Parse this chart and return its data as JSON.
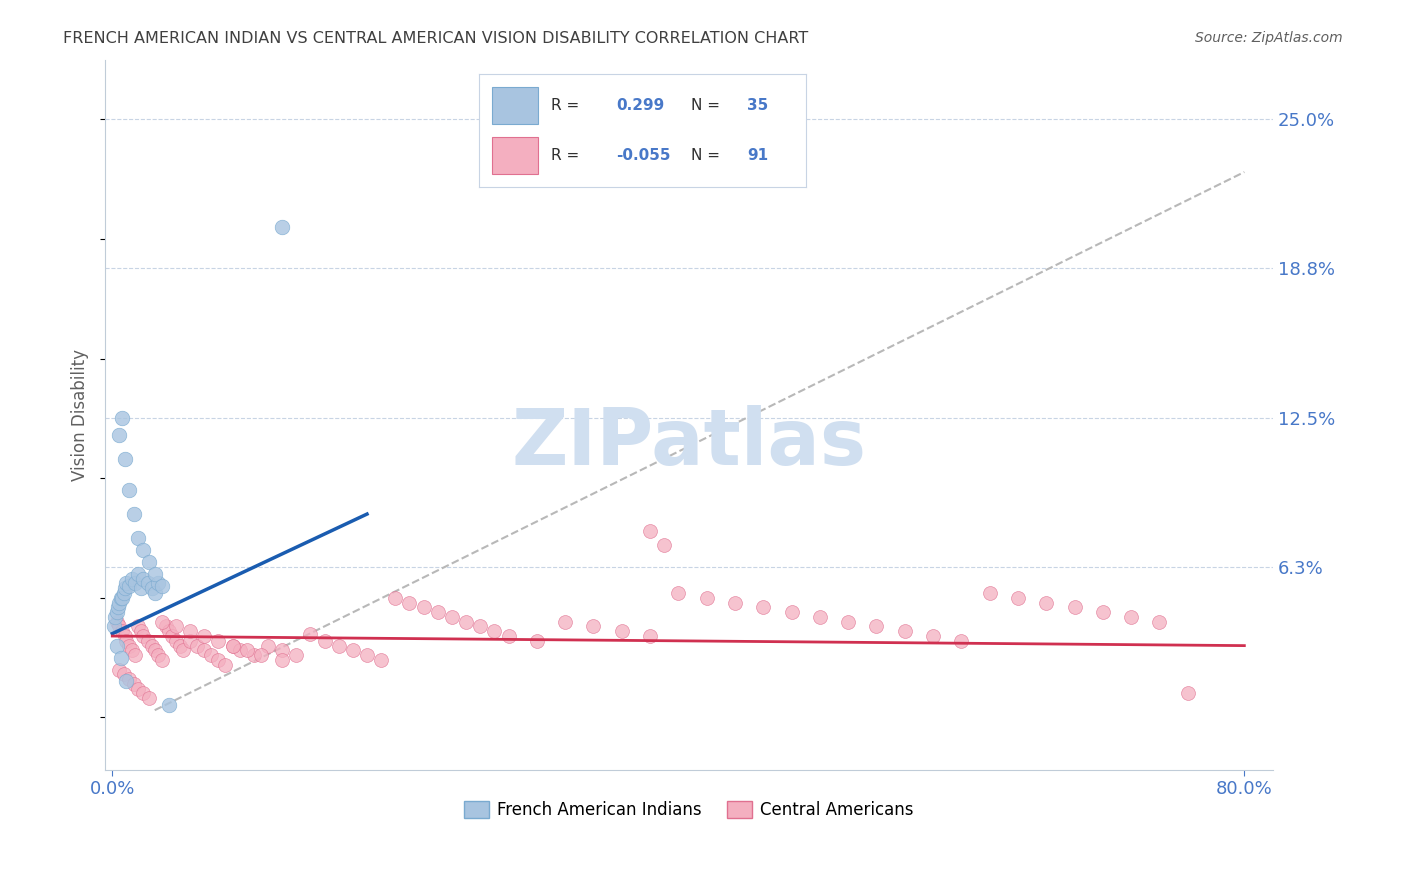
{
  "title": "FRENCH AMERICAN INDIAN VS CENTRAL AMERICAN VISION DISABILITY CORRELATION CHART",
  "source": "Source: ZipAtlas.com",
  "ylabel": "Vision Disability",
  "legend1_label": "R =  0.299   N = 35",
  "legend2_label": "R = -0.055   N = 91",
  "legend_label1": "French American Indians",
  "legend_label2": "Central Americans",
  "blue_color": "#a8c4e0",
  "blue_edge_color": "#7aaad0",
  "blue_line_color": "#1a5cb0",
  "pink_color": "#f4afc0",
  "pink_edge_color": "#e07090",
  "pink_line_color": "#d03050",
  "dashed_line_color": "#b8b8b8",
  "grid_color": "#c8d4e4",
  "title_color": "#404040",
  "axis_tick_color": "#4878c8",
  "ylabel_color": "#606060",
  "watermark_color": "#d0dff0",
  "source_color": "#606060",
  "xlim": [
    -0.005,
    0.82
  ],
  "ylim": [
    -0.022,
    0.275
  ],
  "xticks": [
    0.0,
    0.8
  ],
  "xtick_labels": [
    "0.0%",
    "80.0%"
  ],
  "yticks": [
    0.063,
    0.125,
    0.188,
    0.25
  ],
  "ytick_labels": [
    "6.3%",
    "12.5%",
    "18.8%",
    "25.0%"
  ],
  "grid_yticks": [
    0.063,
    0.125,
    0.188,
    0.25
  ],
  "blue_x": [
    0.001,
    0.002,
    0.003,
    0.004,
    0.005,
    0.006,
    0.007,
    0.008,
    0.009,
    0.01,
    0.012,
    0.014,
    0.016,
    0.018,
    0.02,
    0.022,
    0.025,
    0.028,
    0.03,
    0.032,
    0.005,
    0.007,
    0.009,
    0.012,
    0.015,
    0.018,
    0.022,
    0.026,
    0.03,
    0.035,
    0.003,
    0.006,
    0.01,
    0.12,
    0.04
  ],
  "blue_y": [
    0.038,
    0.042,
    0.044,
    0.046,
    0.048,
    0.05,
    0.05,
    0.052,
    0.054,
    0.056,
    0.055,
    0.058,
    0.056,
    0.06,
    0.054,
    0.058,
    0.056,
    0.054,
    0.052,
    0.056,
    0.118,
    0.125,
    0.108,
    0.095,
    0.085,
    0.075,
    0.07,
    0.065,
    0.06,
    0.055,
    0.03,
    0.025,
    0.015,
    0.205,
    0.005
  ],
  "pink_x": [
    0.003,
    0.005,
    0.007,
    0.009,
    0.01,
    0.012,
    0.014,
    0.016,
    0.018,
    0.02,
    0.022,
    0.025,
    0.028,
    0.03,
    0.032,
    0.035,
    0.038,
    0.04,
    0.042,
    0.045,
    0.048,
    0.05,
    0.055,
    0.06,
    0.065,
    0.07,
    0.075,
    0.08,
    0.085,
    0.09,
    0.1,
    0.11,
    0.12,
    0.13,
    0.14,
    0.15,
    0.16,
    0.17,
    0.18,
    0.19,
    0.2,
    0.21,
    0.22,
    0.23,
    0.24,
    0.25,
    0.26,
    0.27,
    0.28,
    0.3,
    0.32,
    0.34,
    0.36,
    0.38,
    0.4,
    0.42,
    0.44,
    0.46,
    0.48,
    0.5,
    0.52,
    0.54,
    0.56,
    0.58,
    0.6,
    0.62,
    0.64,
    0.66,
    0.68,
    0.7,
    0.72,
    0.74,
    0.76,
    0.005,
    0.008,
    0.012,
    0.015,
    0.018,
    0.022,
    0.026,
    0.035,
    0.045,
    0.055,
    0.065,
    0.075,
    0.085,
    0.095,
    0.105,
    0.12,
    0.38,
    0.39
  ],
  "pink_y": [
    0.04,
    0.038,
    0.036,
    0.034,
    0.032,
    0.03,
    0.028,
    0.026,
    0.038,
    0.036,
    0.034,
    0.032,
    0.03,
    0.028,
    0.026,
    0.024,
    0.038,
    0.036,
    0.034,
    0.032,
    0.03,
    0.028,
    0.032,
    0.03,
    0.028,
    0.026,
    0.024,
    0.022,
    0.03,
    0.028,
    0.026,
    0.03,
    0.028,
    0.026,
    0.035,
    0.032,
    0.03,
    0.028,
    0.026,
    0.024,
    0.05,
    0.048,
    0.046,
    0.044,
    0.042,
    0.04,
    0.038,
    0.036,
    0.034,
    0.032,
    0.04,
    0.038,
    0.036,
    0.034,
    0.052,
    0.05,
    0.048,
    0.046,
    0.044,
    0.042,
    0.04,
    0.038,
    0.036,
    0.034,
    0.032,
    0.052,
    0.05,
    0.048,
    0.046,
    0.044,
    0.042,
    0.04,
    0.01,
    0.02,
    0.018,
    0.016,
    0.014,
    0.012,
    0.01,
    0.008,
    0.04,
    0.038,
    0.036,
    0.034,
    0.032,
    0.03,
    0.028,
    0.026,
    0.024,
    0.078,
    0.072
  ],
  "blue_line_x": [
    0.0,
    0.18
  ],
  "blue_line_y": [
    0.035,
    0.085
  ],
  "pink_line_x": [
    0.0,
    0.8
  ],
  "pink_line_y": [
    0.034,
    0.03
  ],
  "dash_line_x": [
    0.03,
    0.8
  ],
  "dash_line_y": [
    0.003,
    0.228
  ]
}
